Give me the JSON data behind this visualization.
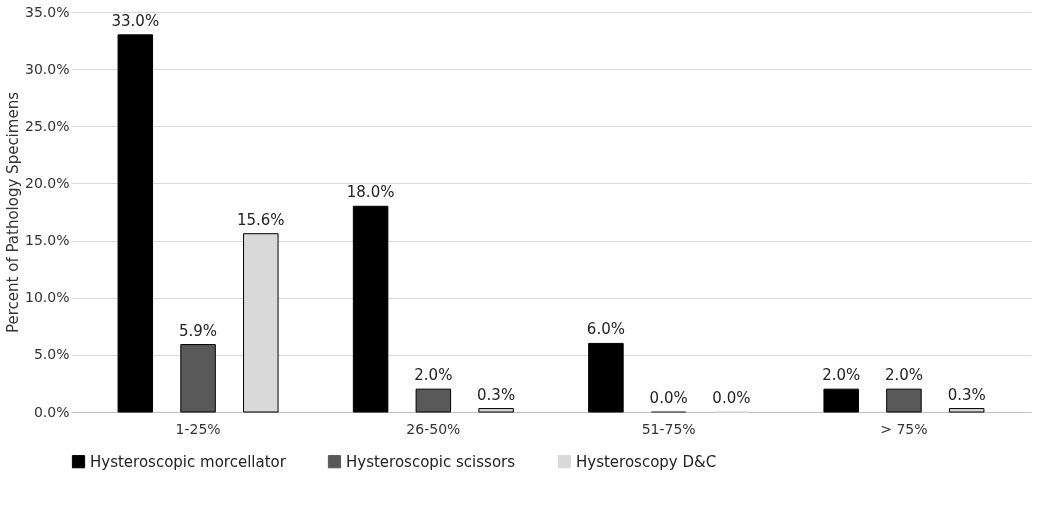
{
  "chart_data": {
    "type": "bar",
    "ylabel": "Percent of Pathology Specimens",
    "categories": [
      "1-25%",
      "26-50%",
      "51-75%",
      "> 75%"
    ],
    "series": [
      {
        "name": "Hysteroscopic morcellator",
        "color": "#000000",
        "values": [
          33.0,
          18.0,
          6.0,
          2.0
        ],
        "value_labels": [
          "33.0%",
          "18.0%",
          "6.0%",
          "2.0%"
        ]
      },
      {
        "name": "Hysteroscopic scissors",
        "color": "#595959",
        "values": [
          5.9,
          2.0,
          0.0,
          2.0
        ],
        "value_labels": [
          "5.9%",
          "2.0%",
          "0.0%",
          "2.0%"
        ]
      },
      {
        "name": "Hysteroscopy D&C",
        "color": "#d9d9d9",
        "values": [
          15.6,
          0.3,
          0.0,
          0.3
        ],
        "value_labels": [
          "15.6%",
          "0.3%",
          "0.0%",
          "0.3%"
        ]
      }
    ],
    "ylim": [
      0,
      35
    ],
    "yticks": [
      {
        "value": 0,
        "label": "0.0%"
      },
      {
        "value": 5,
        "label": "5.0%"
      },
      {
        "value": 10,
        "label": "10.0%"
      },
      {
        "value": 15,
        "label": "15.0%"
      },
      {
        "value": 20,
        "label": "20.0%"
      },
      {
        "value": 25,
        "label": "25.0%"
      },
      {
        "value": 30,
        "label": "30.0%"
      },
      {
        "value": 35,
        "label": "35.0%"
      }
    ],
    "grid": "y",
    "legend": "bottom"
  }
}
